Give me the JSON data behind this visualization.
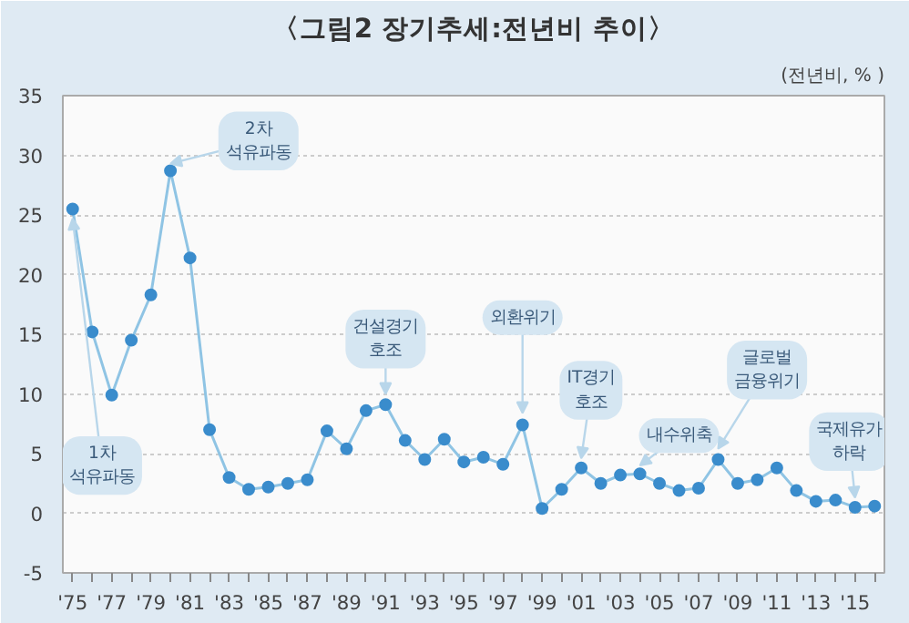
{
  "chart_data": {
    "type": "line",
    "title": "〈그림2 장기추세:전년비 추이〉",
    "ylabel": "(전년비, % )",
    "x": [
      1975,
      1976,
      1977,
      1978,
      1979,
      1980,
      1981,
      1982,
      1983,
      1984,
      1985,
      1986,
      1987,
      1988,
      1989,
      1990,
      1991,
      1992,
      1993,
      1994,
      1995,
      1996,
      1997,
      1998,
      1999,
      2000,
      2001,
      2002,
      2003,
      2004,
      2005,
      2006,
      2007,
      2008,
      2009,
      2010,
      2011,
      2012,
      2013,
      2014,
      2015,
      2016
    ],
    "series": [
      {
        "color": "#3a8ccc",
        "values": [
          25.5,
          15.2,
          9.9,
          14.5,
          18.3,
          28.7,
          21.4,
          7.0,
          3.0,
          2.0,
          2.2,
          2.5,
          2.8,
          6.9,
          5.4,
          8.6,
          9.1,
          6.1,
          4.5,
          6.2,
          4.3,
          4.7,
          4.1,
          7.4,
          0.4,
          2.0,
          3.8,
          2.5,
          3.2,
          3.3,
          2.5,
          1.9,
          2.1,
          4.5,
          2.5,
          2.8,
          3.8,
          1.9,
          1.0,
          1.1,
          0.5,
          0.6
        ]
      }
    ],
    "xlim": [
      1974.5,
      2016.5
    ],
    "xticks": [
      {
        "value": 1975,
        "label": "'75"
      },
      {
        "value": 1976,
        "label": null
      },
      {
        "value": 1977,
        "label": "'77"
      },
      {
        "value": 1978,
        "label": null
      },
      {
        "value": 1979,
        "label": "'79"
      },
      {
        "value": 1980,
        "label": null
      },
      {
        "value": 1981,
        "label": "'81"
      },
      {
        "value": 1982,
        "label": null
      },
      {
        "value": 1983,
        "label": "'83"
      },
      {
        "value": 1984,
        "label": null
      },
      {
        "value": 1985,
        "label": "'85"
      },
      {
        "value": 1986,
        "label": null
      },
      {
        "value": 1987,
        "label": "'87"
      },
      {
        "value": 1988,
        "label": null
      },
      {
        "value": 1989,
        "label": "'89"
      },
      {
        "value": 1990,
        "label": null
      },
      {
        "value": 1991,
        "label": "'91"
      },
      {
        "value": 1992,
        "label": null
      },
      {
        "value": 1993,
        "label": "'93"
      },
      {
        "value": 1994,
        "label": null
      },
      {
        "value": 1995,
        "label": "'95"
      },
      {
        "value": 1996,
        "label": null
      },
      {
        "value": 1997,
        "label": "'97"
      },
      {
        "value": 1998,
        "label": null
      },
      {
        "value": 1999,
        "label": "'99"
      },
      {
        "value": 2000,
        "label": null
      },
      {
        "value": 2001,
        "label": "'01"
      },
      {
        "value": 2002,
        "label": null
      },
      {
        "value": 2003,
        "label": "'03"
      },
      {
        "value": 2004,
        "label": null
      },
      {
        "value": 2005,
        "label": "'05"
      },
      {
        "value": 2006,
        "label": null
      },
      {
        "value": 2007,
        "label": "'07"
      },
      {
        "value": 2008,
        "label": null
      },
      {
        "value": 2009,
        "label": "'09"
      },
      {
        "value": 2010,
        "label": null
      },
      {
        "value": 2011,
        "label": "'11"
      },
      {
        "value": 2012,
        "label": null
      },
      {
        "value": 2013,
        "label": "'13"
      },
      {
        "value": 2014,
        "label": null
      },
      {
        "value": 2015,
        "label": "'15"
      },
      {
        "value": 2016,
        "label": null
      }
    ],
    "ylim": [
      -5,
      35
    ],
    "yticks": [
      -5,
      0,
      5,
      10,
      15,
      20,
      25,
      30,
      35
    ],
    "grid": "y",
    "marker": "circle",
    "line_style": "solid",
    "annotations": [
      {
        "text": "1차\n석유파동",
        "x": 1975,
        "y": 25.5
      },
      {
        "text": "2차\n석유파동",
        "x": 1980,
        "y": 28.7
      },
      {
        "text": "건설경기\n호조",
        "x": 1991,
        "y": 9.1
      },
      {
        "text": "외환위기",
        "x": 1998,
        "y": 7.4
      },
      {
        "text": "IT경기\n호조",
        "x": 2001,
        "y": 3.8
      },
      {
        "text": "내수위축",
        "x": 2004,
        "y": 3.3
      },
      {
        "text": "글로벌\n금융위기",
        "x": 2008,
        "y": 4.5
      },
      {
        "text": "국제유가\n하락",
        "x": 2015,
        "y": 0.5
      }
    ]
  }
}
